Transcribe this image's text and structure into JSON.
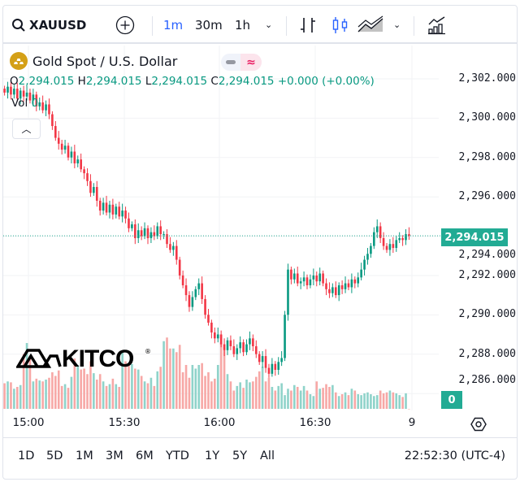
{
  "toolbar": {
    "symbol": "XAUUSD",
    "intervals": [
      "1m",
      "30m",
      "1h"
    ],
    "active_interval": "1m"
  },
  "legend": {
    "title": "Gold Spot / U.S. Dollar",
    "o_label": "O",
    "o": "2,294.015",
    "h_label": "H",
    "h": "2,294.015",
    "l_label": "L",
    "l": "2,294.015",
    "c_label": "C",
    "c": "2,294.015",
    "change": "+0.000 (+0.00%)",
    "vol_label": "Vol",
    "vol": "0"
  },
  "logo": "KITCO",
  "colors": {
    "up": "#089981",
    "down": "#f23645",
    "vol_up": "#8fd3ca",
    "vol_down": "#f7a8a6",
    "accent": "#2962ff",
    "last": "#22ab94"
  },
  "price_axis": [
    "2,302.000",
    "2,300.000",
    "2,298.000",
    "2,296.000",
    "2,294.000",
    "2,292.000",
    "2,290.000",
    "2,288.000",
    "2,286.000"
  ],
  "last_price_label": "2,294.015",
  "last_volume_label": "0",
  "time_axis": [
    "15:00",
    "15:30",
    "16:00",
    "16:30",
    "9"
  ],
  "ranges": [
    "1D",
    "5D",
    "1M",
    "3M",
    "6M",
    "YTD",
    "1Y",
    "5Y",
    "All"
  ],
  "clock": "22:52:30 (UTC-4)",
  "chart_data": {
    "type": "candlestick",
    "title": "Gold Spot / U.S. Dollar",
    "interval": "1m",
    "start_minute_offset_from_15_00": -8,
    "ylim": [
      2285.6,
      2302.8
    ],
    "closes": [
      2301.3,
      2301.6,
      2301.2,
      2301.5,
      2301.0,
      2301.4,
      2301.1,
      2301.3,
      2300.9,
      2301.2,
      2300.6,
      2300.8,
      2300.4,
      2300.7,
      2300.2,
      2299.6,
      2299.0,
      2298.7,
      2298.4,
      2298.6,
      2298.0,
      2298.3,
      2297.7,
      2297.9,
      2297.4,
      2297.2,
      2296.8,
      2296.2,
      2296.5,
      2295.8,
      2295.3,
      2295.7,
      2295.2,
      2295.6,
      2295.1,
      2295.5,
      2295.0,
      2295.3,
      2294.9,
      2294.4,
      2294.6,
      2293.9,
      2294.3,
      2294.0,
      2294.4,
      2293.9,
      2294.2,
      2294.0,
      2294.5,
      2294.1,
      2294.1,
      2293.6,
      2293.3,
      2293.5,
      2292.8,
      2292.0,
      2291.5,
      2291.0,
      2290.4,
      2290.9,
      2291.3,
      2291.6,
      2290.8,
      2290.0,
      2289.6,
      2289.1,
      2288.8,
      2289.0,
      2288.5,
      2288.2,
      2288.7,
      2288.4,
      2288.0,
      2288.3,
      2288.6,
      2288.1,
      2288.5,
      2288.8,
      2288.4,
      2288.0,
      2287.6,
      2287.9,
      2287.3,
      2287.0,
      2287.5,
      2287.2,
      2287.6,
      2287.8,
      2290.0,
      2292.3,
      2291.8,
      2292.1,
      2291.6,
      2291.7,
      2291.9,
      2291.5,
      2291.8,
      2292.0,
      2291.7,
      2292.1,
      2291.6,
      2291.3,
      2291.1,
      2291.4,
      2291.0,
      2291.5,
      2291.3,
      2291.6,
      2291.4,
      2291.8,
      2291.6,
      2291.9,
      2292.3,
      2292.8,
      2293.1,
      2293.5,
      2294.2,
      2294.5,
      2293.9,
      2293.5,
      2293.3,
      2293.6,
      2293.4,
      2293.8,
      2293.9,
      2293.8,
      2294.1,
      2294.015
    ],
    "volumes": [
      28,
      30,
      29,
      22,
      24,
      26,
      60,
      72,
      55,
      30,
      33,
      31,
      30,
      32,
      34,
      40,
      36,
      42,
      25,
      27,
      23,
      35,
      55,
      48,
      43,
      44,
      38,
      52,
      39,
      32,
      38,
      30,
      25,
      27,
      33,
      27,
      24,
      62,
      52,
      48,
      49,
      44,
      43,
      36,
      30,
      28,
      34,
      25,
      41,
      46,
      74,
      78,
      66,
      66,
      62,
      70,
      40,
      48,
      34,
      48,
      44,
      48,
      50,
      36,
      40,
      30,
      33,
      48,
      72,
      64,
      38,
      30,
      20,
      25,
      29,
      23,
      32,
      29,
      30,
      35,
      41,
      46,
      30,
      34,
      24,
      20,
      25,
      28,
      15,
      22,
      20,
      26,
      24,
      20,
      25,
      20,
      16,
      14,
      30,
      22,
      23,
      27,
      24,
      26,
      18,
      14,
      16,
      18,
      15,
      22,
      20,
      16,
      15,
      17,
      18,
      16,
      14,
      15,
      20,
      17,
      18,
      20,
      18,
      17,
      15,
      13,
      17,
      0
    ]
  }
}
